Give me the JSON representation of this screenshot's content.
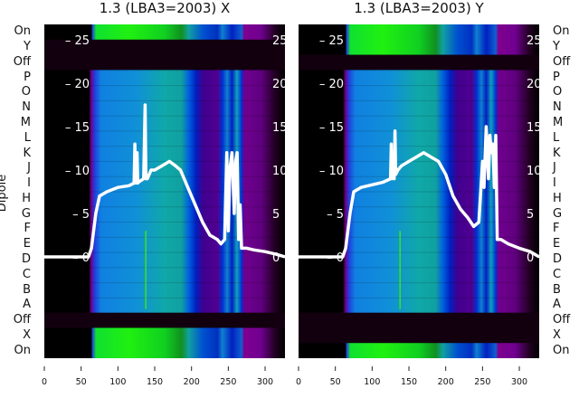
{
  "chart_data": [
    {
      "type": "heatmap",
      "title": "1.3 (LBA3=2003) X",
      "ylabel": "Dipole",
      "xlim": [
        0,
        327
      ],
      "xticks": [
        0,
        50,
        100,
        150,
        200,
        250,
        300
      ],
      "yticks": [
        0,
        5,
        10,
        15,
        20,
        25
      ],
      "rows": [
        "On",
        "Y",
        "Off",
        "P",
        "O",
        "N",
        "M",
        "L",
        "K",
        "J",
        "I",
        "H",
        "G",
        "F",
        "E",
        "D",
        "C",
        "B",
        "A",
        "Off",
        "X",
        "On"
      ],
      "row_state": [
        "on",
        "off",
        "off",
        "d",
        "d",
        "d",
        "d",
        "d",
        "d",
        "d",
        "d",
        "d",
        "d",
        "d",
        "d",
        "d",
        "d",
        "d",
        "d",
        "off",
        "on",
        "on"
      ],
      "spectrum": {
        "x": [
          0,
          60,
          64,
          70,
          75,
          85,
          100,
          115,
          122,
          123,
          124,
          126,
          127,
          128,
          135,
          137,
          138,
          140,
          145,
          150,
          160,
          170,
          178,
          185,
          195,
          205,
          215,
          225,
          235,
          240,
          245,
          248,
          250,
          252,
          255,
          258,
          260,
          262,
          264,
          266,
          268,
          270,
          275,
          285,
          300,
          315,
          327
        ],
        "y": [
          0,
          0,
          1,
          5,
          7,
          7.5,
          8,
          8.2,
          8.5,
          13,
          8.5,
          12,
          8.5,
          8.6,
          9,
          17.5,
          9,
          9,
          10,
          10,
          10.5,
          11,
          10.5,
          10,
          8,
          6,
          4,
          2.5,
          2,
          1.5,
          2,
          12,
          3,
          10,
          12,
          5,
          11,
          12,
          2,
          6,
          1,
          1,
          1,
          0.8,
          0.6,
          0.3,
          0
        ]
      },
      "green_band_color": "#10e010"
    },
    {
      "type": "heatmap",
      "title": "1.3 (LBA3=2003) Y",
      "ylabel": "",
      "xlim": [
        0,
        327
      ],
      "xticks": [
        0,
        50,
        100,
        150,
        200,
        250,
        300
      ],
      "yticks": [
        0,
        5,
        10,
        15,
        20,
        25
      ],
      "rows": [
        "On",
        "Y",
        "Off",
        "P",
        "O",
        "N",
        "M",
        "L",
        "K",
        "J",
        "I",
        "H",
        "G",
        "F",
        "E",
        "D",
        "C",
        "B",
        "A",
        "Off",
        "X",
        "On"
      ],
      "row_state": [
        "on",
        "on",
        "off",
        "d",
        "d",
        "d",
        "d",
        "d",
        "d",
        "d",
        "d",
        "d",
        "d",
        "d",
        "d",
        "d",
        "d",
        "d",
        "d",
        "off",
        "off",
        "on"
      ],
      "spectrum": {
        "x": [
          0,
          60,
          64,
          70,
          75,
          85,
          100,
          115,
          125,
          126,
          127,
          128,
          130,
          131,
          132,
          135,
          140,
          150,
          160,
          170,
          180,
          190,
          200,
          210,
          220,
          230,
          238,
          245,
          250,
          252,
          255,
          258,
          260,
          262,
          264,
          266,
          268,
          270,
          275,
          285,
          300,
          315,
          327
        ],
        "y": [
          0,
          0,
          1,
          5,
          7.5,
          8,
          8.3,
          8.6,
          9,
          13,
          9,
          11,
          9,
          14.5,
          9.5,
          10,
          10.5,
          11,
          11.5,
          12,
          11.5,
          11,
          9.5,
          7,
          5.5,
          4.5,
          3.5,
          4,
          11,
          8,
          15,
          9,
          14,
          12,
          13,
          8,
          14,
          2,
          2,
          1.5,
          1,
          0.6,
          0
        ]
      },
      "green_band_color": "#20f020"
    }
  ]
}
